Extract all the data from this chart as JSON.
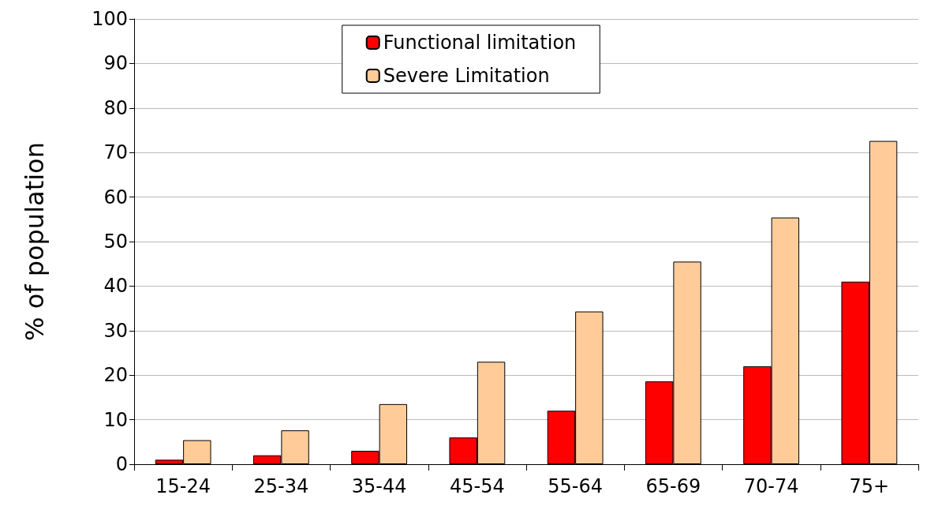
{
  "chart_data": {
    "type": "bar",
    "ylabel": "% of population",
    "categories": [
      "15-24",
      "25-34",
      "35-44",
      "45-54",
      "55-64",
      "65-69",
      "70-74",
      "75+"
    ],
    "series": [
      {
        "name": "Functional limitation",
        "color": "#ff0000",
        "values": [
          1,
          2,
          3,
          6,
          12,
          18.6,
          22,
          41
        ]
      },
      {
        "name": "Severe Limitation",
        "color": "#ffcc99",
        "values": [
          5.4,
          7.6,
          13.5,
          23,
          34.3,
          45.5,
          55.4,
          72.6
        ]
      }
    ],
    "ylim": [
      0,
      100
    ],
    "yticks": [
      0,
      10,
      20,
      30,
      40,
      50,
      60,
      70,
      80,
      90,
      100
    ],
    "grid": "y",
    "legend": "top"
  }
}
